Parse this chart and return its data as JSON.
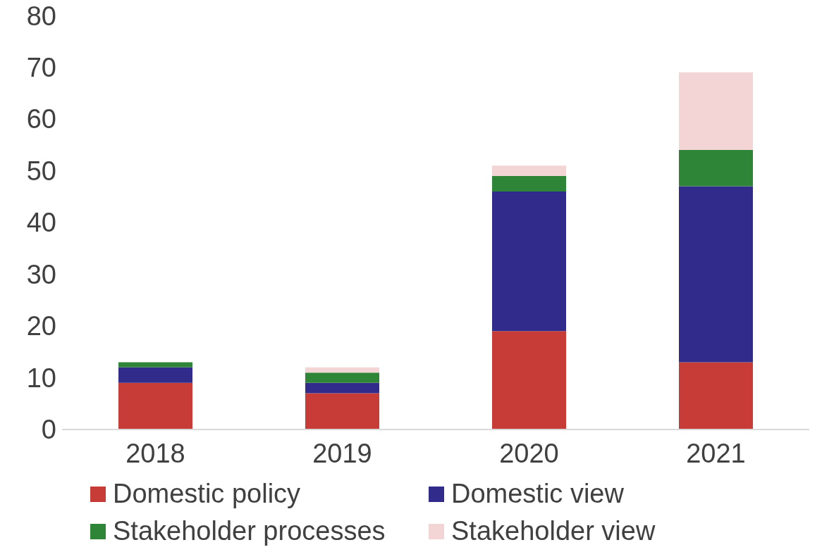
{
  "chart_data": {
    "type": "bar",
    "stacked": true,
    "categories": [
      "2018",
      "2019",
      "2020",
      "2021"
    ],
    "series": [
      {
        "name": "Domestic policy",
        "color": "#c83c37",
        "values": [
          9,
          7,
          19,
          13
        ]
      },
      {
        "name": "Domestic view",
        "color": "#312c8c",
        "values": [
          3,
          2,
          27,
          34
        ]
      },
      {
        "name": "Stakeholder processes",
        "color": "#2f8537",
        "values": [
          1,
          2,
          3,
          7
        ]
      },
      {
        "name": "Stakeholder view",
        "color": "#f3d5d5",
        "values": [
          null,
          1,
          2,
          15
        ]
      }
    ],
    "ylim": [
      0,
      80
    ],
    "yticks": [
      0,
      10,
      20,
      30,
      40,
      50,
      60,
      70,
      80
    ],
    "grid": false,
    "legend": "bottom"
  }
}
